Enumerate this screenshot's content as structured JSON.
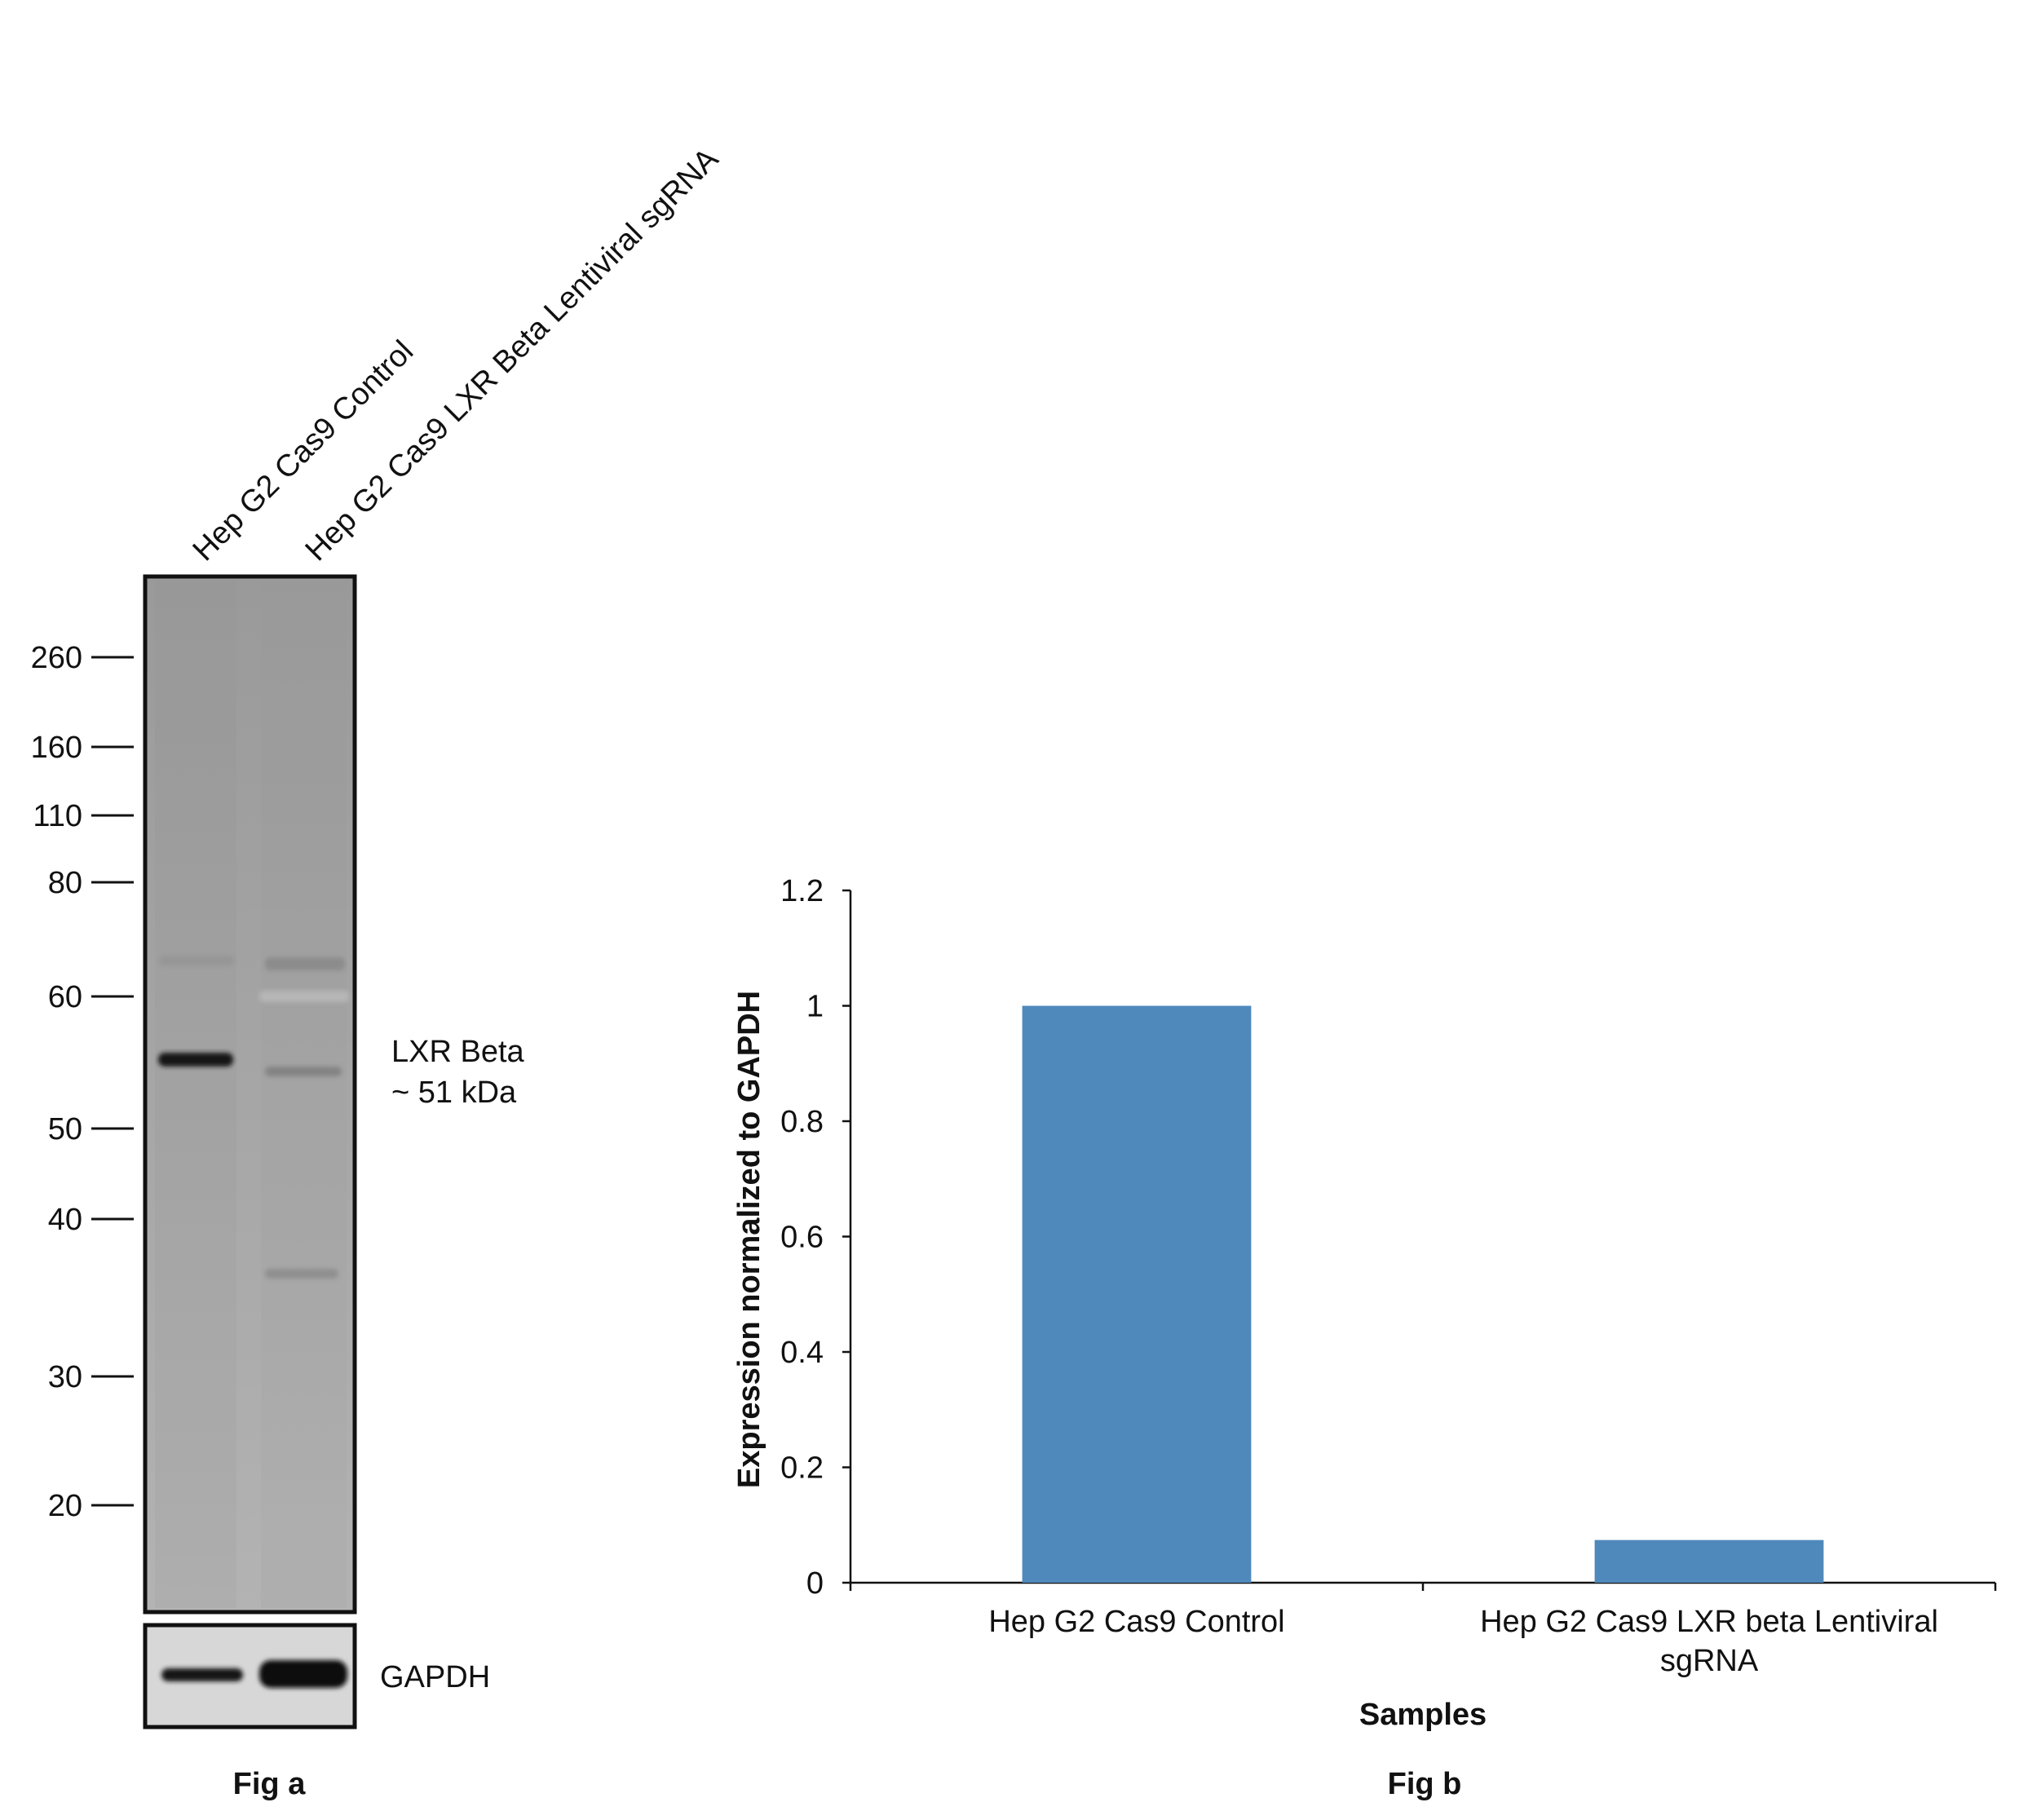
{
  "figure_a": {
    "lanes": [
      "Hep G2 Cas9 Control",
      "Hep G2 Cas9  LXR Beta Lentiviral sgRNA"
    ],
    "markers": [
      "260",
      "160",
      "110",
      "80",
      "60",
      "50",
      "40",
      "30",
      "20"
    ],
    "band_label_line1": "LXR Beta",
    "band_label_line2": "~ 51 kDa",
    "loading_control": "GAPDH",
    "caption": "Fig a"
  },
  "figure_b": {
    "caption": "Fig b"
  },
  "chart_data": {
    "type": "bar",
    "categories": [
      "Hep G2 Cas9 Control",
      "Hep G2 Cas9 LXR beta Lentiviral sgRNA"
    ],
    "category_lines": [
      [
        "Hep G2 Cas9 Control"
      ],
      [
        "Hep G2 Cas9 LXR beta Lentiviral",
        "sgRNA"
      ]
    ],
    "values": [
      1.0,
      0.074
    ],
    "xlabel": "Samples",
    "ylabel": "Expression normalized to GAPDH",
    "ylim": [
      0,
      1.2
    ],
    "yticks": [
      "0",
      "0.2",
      "0.4",
      "0.6",
      "0.8",
      "1",
      "1.2"
    ],
    "bar_color": "#4f89bc",
    "grid": false,
    "legend": "none"
  }
}
